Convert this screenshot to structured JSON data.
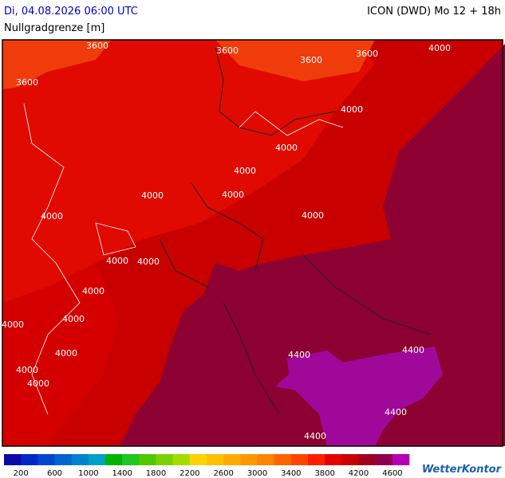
{
  "header": {
    "datetime": "Di, 04.08.2026 06:00 UTC",
    "model": "ICON (DWD) Mo 12 + 18h",
    "parameter": "Nullgradgrenze [m]"
  },
  "map": {
    "contour_labels": [
      3600,
      3600,
      3600,
      3600,
      3600,
      4000,
      4000,
      4000,
      4000,
      4000,
      4000,
      4000,
      4000,
      4000,
      4000,
      4000,
      4000,
      4000,
      4000,
      4000,
      4000,
      4400,
      4400,
      4400,
      4400
    ]
  },
  "legend": {
    "colors": [
      "#0a0aa8",
      "#0028c8",
      "#0046d2",
      "#0064d2",
      "#0082d2",
      "#00a0c8",
      "#00b400",
      "#1ec81e",
      "#50c800",
      "#7cd200",
      "#a0dc00",
      "#ffd200",
      "#ffc000",
      "#ffaa00",
      "#ff9600",
      "#ff8200",
      "#ff6400",
      "#ff4600",
      "#ff1e00",
      "#e60000",
      "#c80000",
      "#a00020",
      "#8c0050",
      "#b400b4"
    ],
    "labels": [
      200,
      600,
      1000,
      1400,
      1800,
      2200,
      2600,
      3000,
      3400,
      3800,
      4200,
      4600
    ]
  },
  "logo": "WetterKontor"
}
